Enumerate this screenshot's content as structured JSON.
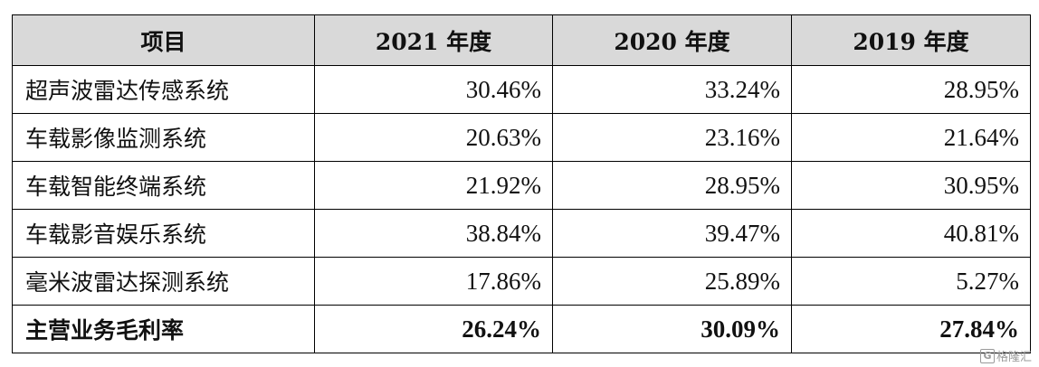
{
  "table": {
    "headers": [
      "项目",
      "2021 年度",
      "2020 年度",
      "2019 年度"
    ],
    "rows": [
      {
        "item": "超声波雷达传感系统",
        "y2021": "30.46%",
        "y2020": "33.24%",
        "y2019": "28.95%"
      },
      {
        "item": "车载影像监测系统",
        "y2021": "20.63%",
        "y2020": "23.16%",
        "y2019": "21.64%"
      },
      {
        "item": "车载智能终端系统",
        "y2021": "21.92%",
        "y2020": "28.95%",
        "y2019": "30.95%"
      },
      {
        "item": "车载影音娱乐系统",
        "y2021": "38.84%",
        "y2020": "39.47%",
        "y2019": "40.81%"
      },
      {
        "item": "毫米波雷达探测系统",
        "y2021": "17.86%",
        "y2020": "25.89%",
        "y2019": "5.27%"
      }
    ],
    "total": {
      "item": "主营业务毛利率",
      "y2021": "26.24%",
      "y2020": "30.09%",
      "y2019": "27.84%"
    }
  },
  "watermark": {
    "icon": "g-logo-icon",
    "text": "格隆汇"
  }
}
